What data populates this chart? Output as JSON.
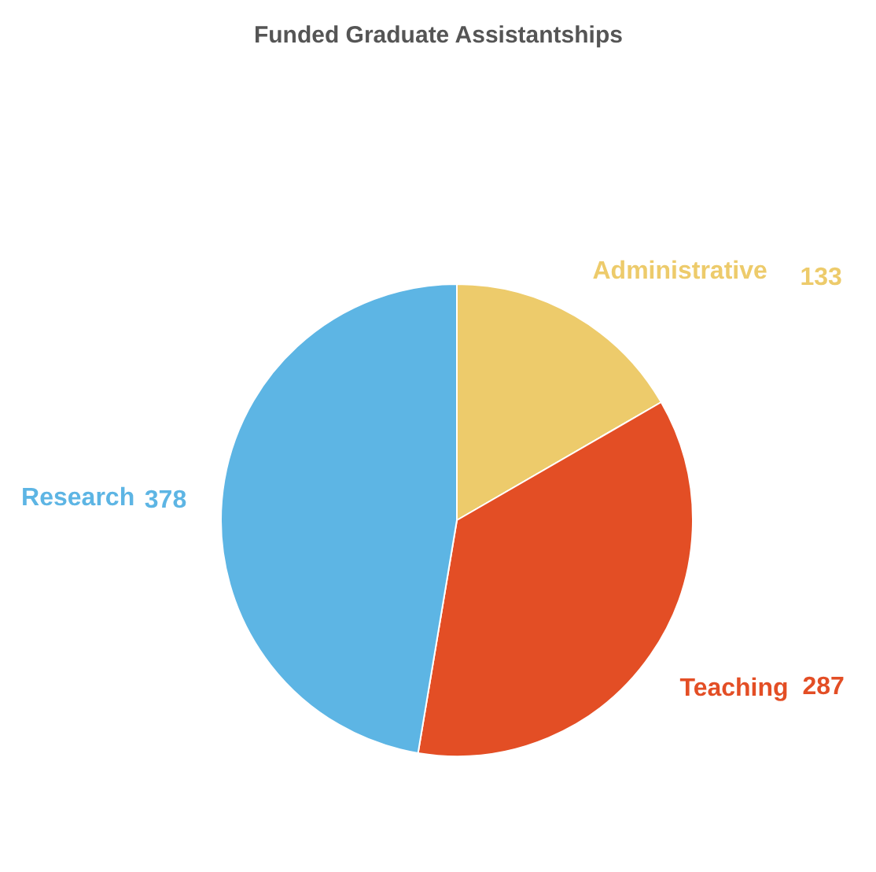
{
  "chart_data": {
    "type": "pie",
    "title": "Funded Graduate Assistantships",
    "categories": [
      "Administrative",
      "Teaching",
      "Research"
    ],
    "values": [
      133,
      287,
      378
    ],
    "colors": [
      "#edcb6b",
      "#e34e25",
      "#5db5e4"
    ],
    "data_labels": true
  }
}
